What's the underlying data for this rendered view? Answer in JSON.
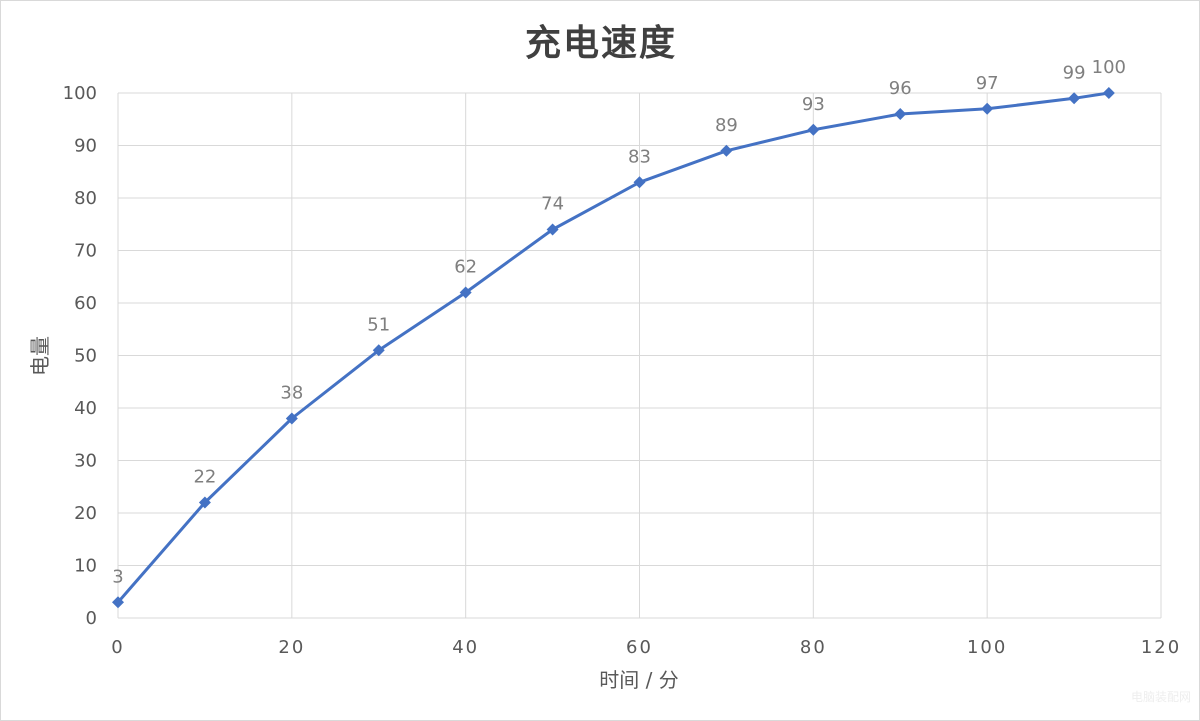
{
  "chart_data": {
    "type": "line",
    "title": "充电速度",
    "xlabel": "时间 / 分",
    "ylabel": "电量",
    "xlim": [
      0,
      120
    ],
    "ylim": [
      0,
      100
    ],
    "xticks": [
      0,
      20,
      40,
      60,
      80,
      100,
      120
    ],
    "yticks": [
      0,
      10,
      20,
      30,
      40,
      50,
      60,
      70,
      80,
      90,
      100
    ],
    "grid": true,
    "marker": "diamond",
    "color": "#4472c4",
    "series": [
      {
        "x": [
          0,
          10,
          20,
          30,
          40,
          50,
          60,
          70,
          80,
          90,
          100,
          110,
          114
        ],
        "values": [
          3,
          22,
          38,
          51,
          62,
          74,
          83,
          89,
          93,
          96,
          97,
          99,
          100
        ]
      }
    ]
  },
  "watermark": "电脑装配网"
}
